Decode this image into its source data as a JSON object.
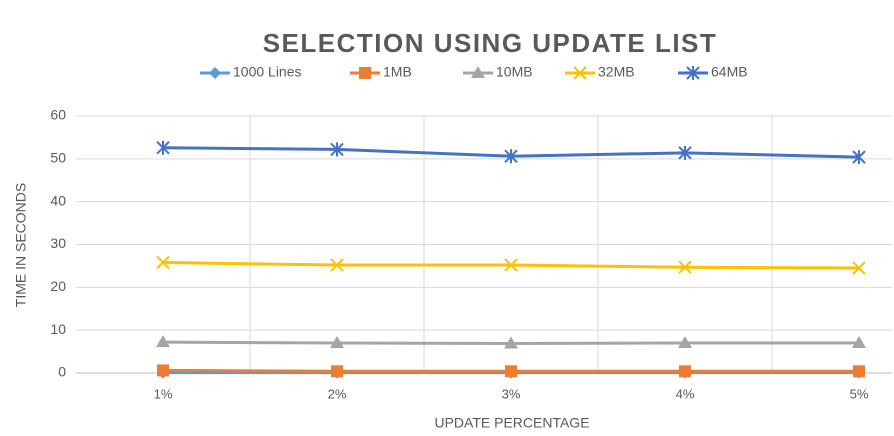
{
  "chart_data": {
    "type": "line",
    "title": "SELECTION USING UPDATE LIST",
    "x_label": "UPDATE PERCENTAGE",
    "y_label": "TIME IN SECONDS",
    "categories": [
      "1%",
      "2%",
      "3%",
      "4%",
      "5%"
    ],
    "series": [
      {
        "name": "1000 Lines",
        "color": "#5b9bd5",
        "marker": "diamond",
        "values": [
          0.1,
          0.1,
          0.1,
          0.1,
          0.1
        ]
      },
      {
        "name": "1MB",
        "color": "#ed7d31",
        "marker": "square",
        "values": [
          0.6,
          0.4,
          0.4,
          0.4,
          0.4
        ]
      },
      {
        "name": "10MB",
        "color": "#a5a5a5",
        "marker": "triangle",
        "values": [
          7.2,
          7.0,
          6.9,
          7.0,
          7.0
        ]
      },
      {
        "name": "32MB",
        "color": "#ffc000",
        "marker": "x",
        "values": [
          25.8,
          25.2,
          25.2,
          24.7,
          24.5
        ]
      },
      {
        "name": "64MB",
        "color": "#4472c4",
        "marker": "star",
        "values": [
          52.6,
          52.2,
          50.6,
          51.4,
          50.4
        ]
      }
    ],
    "ylim": [
      0,
      60
    ],
    "yticks": [
      0,
      10,
      20,
      30,
      40,
      50,
      60
    ],
    "grid": true,
    "legend": "top"
  }
}
